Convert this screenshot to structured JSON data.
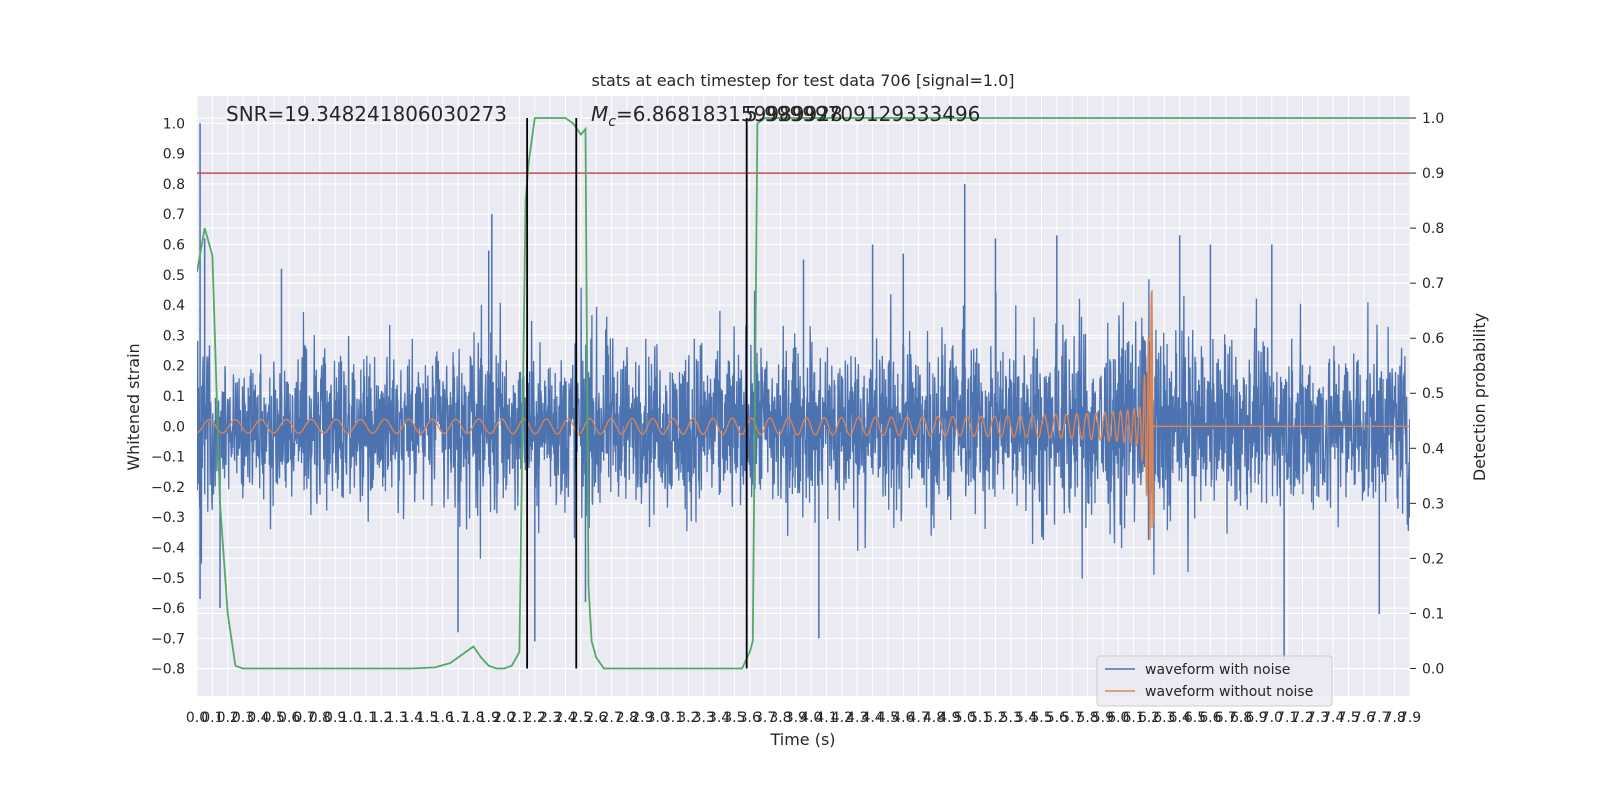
{
  "chart_data": {
    "type": "line",
    "title": "stats at each timestep for test data 706 [signal=1.0]",
    "xlabel": "Time (s)",
    "ylabel": "Whitened strain",
    "y2label": "Detection probability",
    "xlim": [
      0.0,
      7.9
    ],
    "ylim": [
      -0.89,
      1.09
    ],
    "y2lim": [
      -0.05,
      1.04
    ],
    "x_ticks": [
      "0.0",
      "0.1",
      "0.2",
      "0.3",
      "0.4",
      "0.5",
      "0.6",
      "0.7",
      "0.8",
      "0.9",
      "1.0",
      "1.1",
      "1.2",
      "1.3",
      "1.4",
      "1.5",
      "1.6",
      "1.7",
      "1.8",
      "1.9",
      "2.0",
      "2.1",
      "2.2",
      "2.3",
      "2.4",
      "2.5",
      "2.6",
      "2.7",
      "2.8",
      "2.9",
      "3.0",
      "3.1",
      "3.2",
      "3.3",
      "3.4",
      "3.5",
      "3.6",
      "3.7",
      "3.8",
      "3.9",
      "4.0",
      "4.1",
      "4.2",
      "4.3",
      "4.4",
      "4.5",
      "4.6",
      "4.7",
      "4.8",
      "4.9",
      "5.0",
      "5.1",
      "5.2",
      "5.3",
      "5.4",
      "5.5",
      "5.6",
      "5.7",
      "5.8",
      "5.9",
      "6.0",
      "6.1",
      "6.2",
      "6.3",
      "6.4",
      "6.5",
      "6.6",
      "6.7",
      "6.8",
      "6.9",
      "7.0",
      "7.1",
      "7.2",
      "7.3",
      "7.4",
      "7.5",
      "7.6",
      "7.7",
      "7.8",
      "7.9"
    ],
    "y_ticks": [
      "−0.8",
      "−0.7",
      "−0.6",
      "−0.5",
      "−0.4",
      "−0.3",
      "−0.2",
      "−0.1",
      "0.0",
      "0.1",
      "0.2",
      "0.3",
      "0.4",
      "0.5",
      "0.6",
      "0.7",
      "0.8",
      "0.9",
      "1.0"
    ],
    "y_tick_values": [
      -0.8,
      -0.7,
      -0.6,
      -0.5,
      -0.4,
      -0.3,
      -0.2,
      -0.1,
      0.0,
      0.1,
      0.2,
      0.3,
      0.4,
      0.5,
      0.6,
      0.7,
      0.8,
      0.9,
      1.0
    ],
    "y2_ticks": [
      "0.0",
      "0.1",
      "0.2",
      "0.3",
      "0.4",
      "0.5",
      "0.6",
      "0.7",
      "0.8",
      "0.9",
      "1.0"
    ],
    "y2_tick_values": [
      0.0,
      0.1,
      0.2,
      0.3,
      0.4,
      0.5,
      0.6,
      0.7,
      0.8,
      0.9,
      1.0
    ],
    "annotations": [
      "SNR=19.348241806030273",
      "M_c=6.868183159989928",
      "5.99999709129333496"
    ],
    "legend": {
      "placement": "lower-right",
      "entries": [
        "waveform with noise",
        "waveform without noise"
      ]
    },
    "colors": {
      "noisy": "#4c72b0",
      "clean": "#dd8452",
      "probability": "#55a868",
      "threshold": "#c44e52",
      "marker": "#000000",
      "plot_bg": "#eaeaf2",
      "grid": "#ffffff"
    },
    "grid": true,
    "series": [
      {
        "name": "waveform with noise",
        "envelope_amplitude": [
          0.44,
          0.34,
          0.3,
          0.32,
          0.36,
          0.38,
          0.4,
          0.36,
          0.38,
          0.42,
          0.4,
          0.38,
          0.4,
          0.38,
          0.4,
          0.39,
          0.38,
          0.4,
          0.42,
          0.45,
          0.42,
          0.4,
          0.38,
          0.4,
          0.42,
          0.44,
          0.4,
          0.42,
          0.4,
          0.38,
          0.4,
          0.42,
          0.4,
          0.38,
          0.42,
          0.4,
          0.42,
          0.44,
          0.4,
          0.42,
          0.44,
          0.42,
          0.44,
          0.42,
          0.4,
          0.44,
          0.46,
          0.44,
          0.46,
          0.44,
          0.46,
          0.44,
          0.42,
          0.44,
          0.46,
          0.44,
          0.46,
          0.48,
          0.46,
          0.48,
          0.5,
          0.52,
          0.48,
          0.44,
          0.42,
          0.44,
          0.42,
          0.44,
          0.42,
          0.4,
          0.42,
          0.44,
          0.42,
          0.44,
          0.42,
          0.4,
          0.42,
          0.44,
          0.42,
          0.4
        ],
        "spikes": [
          [
            0.02,
            1.0
          ],
          [
            0.02,
            -0.57
          ],
          [
            0.05,
            0.62
          ],
          [
            0.15,
            -0.6
          ],
          [
            0.55,
            0.52
          ],
          [
            1.7,
            -0.68
          ],
          [
            1.9,
            0.58
          ],
          [
            1.92,
            0.7
          ],
          [
            2.2,
            -0.71
          ],
          [
            2.53,
            -0.58
          ],
          [
            3.95,
            0.55
          ],
          [
            4.05,
            -0.7
          ],
          [
            4.4,
            0.6
          ],
          [
            4.6,
            0.57
          ],
          [
            5.0,
            0.8
          ],
          [
            5.2,
            0.62
          ],
          [
            5.6,
            0.63
          ],
          [
            6.4,
            0.63
          ],
          [
            6.6,
            0.6
          ],
          [
            7.0,
            0.6
          ],
          [
            7.08,
            -0.77
          ],
          [
            7.7,
            -0.62
          ]
        ]
      },
      {
        "name": "waveform without noise",
        "merger_time": 6.22,
        "peak_strain": 0.45,
        "min_strain": -0.32
      },
      {
        "name": "detection probability",
        "x": [
          0.0,
          0.05,
          0.1,
          0.15,
          0.2,
          0.25,
          0.3,
          0.4,
          0.6,
          1.0,
          1.4,
          1.55,
          1.65,
          1.75,
          1.8,
          1.85,
          1.9,
          1.95,
          2.0,
          2.05,
          2.1,
          2.14,
          2.16,
          2.2,
          2.25,
          2.3,
          2.35,
          2.4,
          2.45,
          2.5,
          2.53,
          2.55,
          2.57,
          2.6,
          2.65,
          2.7,
          3.0,
          3.4,
          3.55,
          3.6,
          3.62,
          3.65,
          3.7,
          3.8,
          4.0,
          7.9
        ],
        "y": [
          0.72,
          0.8,
          0.75,
          0.3,
          0.1,
          0.005,
          0.0,
          0.0,
          0.0,
          0.0,
          0.0,
          0.002,
          0.01,
          0.03,
          0.04,
          0.02,
          0.005,
          0.0,
          0.0,
          0.005,
          0.03,
          0.85,
          0.92,
          1.0,
          1.0,
          1.0,
          1.0,
          1.0,
          0.99,
          0.97,
          0.98,
          0.15,
          0.05,
          0.02,
          0.0,
          0.0,
          0.0,
          0.0,
          0.0,
          0.03,
          0.05,
          0.99,
          1.0,
          1.0,
          1.0,
          1.0
        ]
      }
    ],
    "threshold": 0.9,
    "vertical_markers": [
      2.15,
      2.47,
      3.58
    ]
  }
}
